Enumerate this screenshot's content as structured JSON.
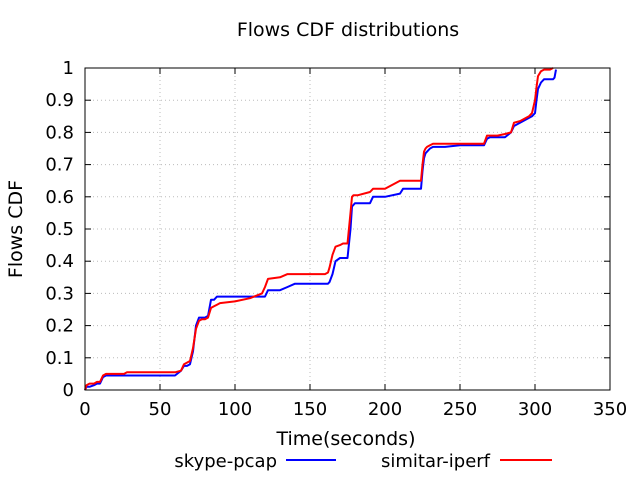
{
  "chart_data": {
    "type": "line",
    "title": "Flows CDF distributions",
    "xlabel": "Time(seconds)",
    "ylabel": "Flows CDF",
    "xlim": [
      0,
      350
    ],
    "ylim": [
      0,
      1
    ],
    "xticks": [
      0,
      50,
      100,
      150,
      200,
      250,
      300,
      350
    ],
    "yticks": [
      0,
      0.1,
      0.2,
      0.3,
      0.4,
      0.5,
      0.6,
      0.7,
      0.8,
      0.9,
      1
    ],
    "grid": true,
    "legend_position": "bottom",
    "series": [
      {
        "name": "skype-pcap",
        "color": "#0000ff",
        "x": [
          0,
          1,
          3,
          6,
          8,
          10,
          12,
          14,
          60,
          64,
          66,
          68,
          70,
          72,
          74,
          76,
          78,
          80,
          82,
          84,
          86,
          88,
          90,
          100,
          110,
          120,
          122,
          130,
          135,
          140,
          150,
          160,
          162,
          163,
          165,
          167,
          170,
          172,
          175,
          177,
          178,
          179,
          180,
          182,
          190,
          192,
          200,
          210,
          212,
          224,
          225,
          226,
          227,
          228,
          230,
          232,
          240,
          250,
          266,
          268,
          270,
          275,
          280,
          284,
          286,
          290,
          296,
          298,
          300,
          301,
          302,
          304,
          306,
          310,
          312,
          313,
          314
        ],
        "y": [
          0,
          0.01,
          0.01,
          0.015,
          0.02,
          0.02,
          0.04,
          0.045,
          0.045,
          0.06,
          0.075,
          0.075,
          0.08,
          0.12,
          0.2,
          0.225,
          0.225,
          0.225,
          0.23,
          0.28,
          0.28,
          0.29,
          0.29,
          0.29,
          0.29,
          0.29,
          0.31,
          0.31,
          0.32,
          0.33,
          0.33,
          0.33,
          0.33,
          0.335,
          0.36,
          0.4,
          0.41,
          0.41,
          0.41,
          0.5,
          0.57,
          0.575,
          0.58,
          0.58,
          0.58,
          0.6,
          0.6,
          0.61,
          0.625,
          0.625,
          0.68,
          0.72,
          0.735,
          0.74,
          0.75,
          0.755,
          0.755,
          0.76,
          0.76,
          0.78,
          0.785,
          0.785,
          0.785,
          0.8,
          0.82,
          0.83,
          0.845,
          0.85,
          0.86,
          0.9,
          0.935,
          0.955,
          0.965,
          0.965,
          0.965,
          0.97,
          0.995
        ]
      },
      {
        "name": "simitar-iperf",
        "color": "#ff0000",
        "x": [
          0,
          1,
          3,
          6,
          8,
          10,
          12,
          14,
          26,
          28,
          60,
          64,
          66,
          68,
          70,
          72,
          74,
          76,
          78,
          80,
          82,
          84,
          86,
          88,
          90,
          100,
          110,
          118,
          120,
          122,
          130,
          135,
          140,
          150,
          160,
          162,
          163,
          165,
          167,
          170,
          172,
          175,
          177,
          178,
          179,
          180,
          182,
          190,
          192,
          200,
          210,
          212,
          224,
          225,
          226,
          227,
          228,
          230,
          232,
          240,
          250,
          266,
          268,
          270,
          275,
          280,
          284,
          286,
          290,
          296,
          298,
          300,
          301,
          302,
          304,
          306,
          310,
          312
        ],
        "y": [
          0,
          0.015,
          0.02,
          0.02,
          0.025,
          0.025,
          0.045,
          0.05,
          0.05,
          0.055,
          0.055,
          0.06,
          0.08,
          0.085,
          0.09,
          0.13,
          0.19,
          0.215,
          0.22,
          0.22,
          0.225,
          0.255,
          0.26,
          0.265,
          0.27,
          0.275,
          0.285,
          0.3,
          0.32,
          0.345,
          0.35,
          0.36,
          0.36,
          0.36,
          0.36,
          0.365,
          0.38,
          0.42,
          0.445,
          0.45,
          0.455,
          0.455,
          0.55,
          0.6,
          0.605,
          0.605,
          0.605,
          0.615,
          0.625,
          0.625,
          0.65,
          0.65,
          0.65,
          0.7,
          0.74,
          0.75,
          0.755,
          0.76,
          0.765,
          0.765,
          0.765,
          0.765,
          0.79,
          0.79,
          0.79,
          0.795,
          0.8,
          0.83,
          0.835,
          0.85,
          0.86,
          0.9,
          0.94,
          0.975,
          0.99,
          0.995,
          0.995,
          1.0
        ]
      }
    ]
  }
}
